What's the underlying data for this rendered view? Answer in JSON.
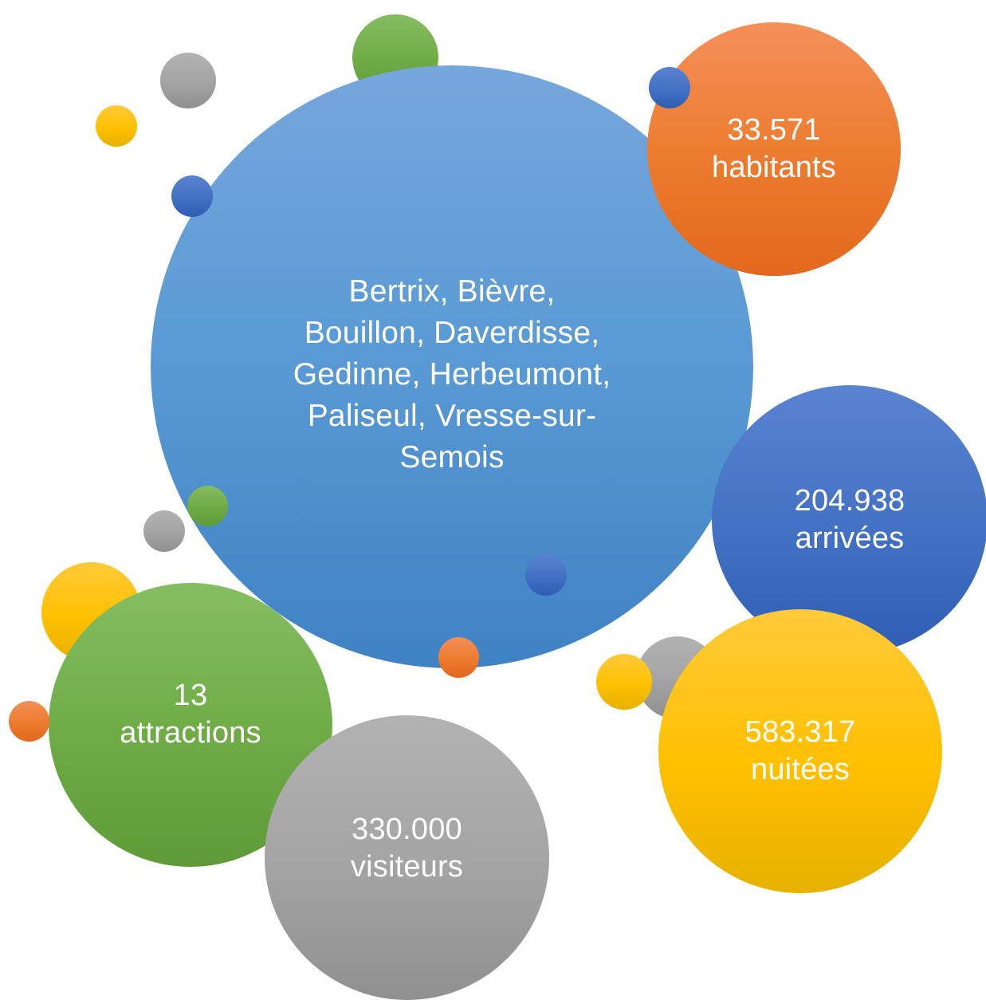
{
  "center": {
    "label": "Bertrix, Bièvre,\nBouillon, Daverdisse,\nGedinne, Herbeumont,\nPaliseul, Vresse-sur-\nSemois"
  },
  "bubbles": {
    "habitants": {
      "label": "33.571\nhabitants"
    },
    "arrivees": {
      "label": "204.938\narrivées"
    },
    "nuitees": {
      "label": "583.317\nnuitées"
    },
    "visiteurs": {
      "label": "330.000\nvisiteurs"
    },
    "attractions": {
      "label": "13\nattractions"
    }
  },
  "colors": {
    "blue": "#5b9bd5",
    "orange": "#ed7d31",
    "dark_blue": "#4472c4",
    "yellow": "#ffc000",
    "green": "#70ad47",
    "gray": "#a5a5a5"
  }
}
